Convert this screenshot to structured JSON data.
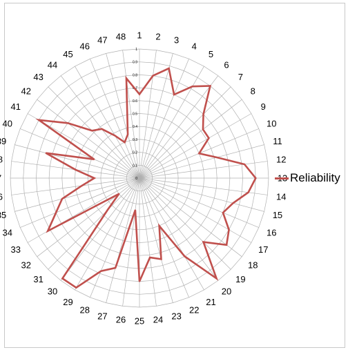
{
  "chart_data": {
    "type": "radar",
    "categories": [
      "1",
      "2",
      "3",
      "4",
      "5",
      "6",
      "7",
      "8",
      "9",
      "10",
      "11",
      "12",
      "13",
      "14",
      "15",
      "16",
      "17",
      "18",
      "19",
      "20",
      "21",
      "22",
      "23",
      "24",
      "25",
      "26",
      "27",
      "28",
      "29",
      "30",
      "31",
      "32",
      "33",
      "34",
      "35",
      "36",
      "37",
      "38",
      "39",
      "40",
      "41",
      "42",
      "43",
      "44",
      "45",
      "46",
      "47",
      "48"
    ],
    "series": [
      {
        "name": "Reliability",
        "color": "#c0504d",
        "values": [
          0.65,
          0.8,
          0.88,
          0.7,
          0.82,
          0.9,
          0.7,
          0.62,
          0.62,
          0.5,
          0.62,
          0.82,
          0.9,
          0.85,
          0.75,
          0.7,
          0.8,
          0.85,
          0.7,
          0.98,
          0.7,
          0.4,
          0.65,
          0.62,
          0.8,
          0.25,
          0.72,
          0.78,
          0.98,
          0.98,
          0.35,
          0.2,
          0.82,
          0.7,
          0.62,
          0.45,
          0.35,
          0.5,
          0.75,
          0.38,
          0.9,
          0.7,
          0.52,
          0.48,
          0.38,
          0.3,
          0.35,
          0.78
        ]
      }
    ],
    "rlim": [
      0,
      1
    ],
    "ticks": [
      "0",
      "0.1",
      "0.2",
      "0.3",
      "0.4",
      "0.5",
      "0.6",
      "0.7",
      "0.8",
      "0.9",
      "1"
    ],
    "grid": true,
    "legend": "right"
  }
}
